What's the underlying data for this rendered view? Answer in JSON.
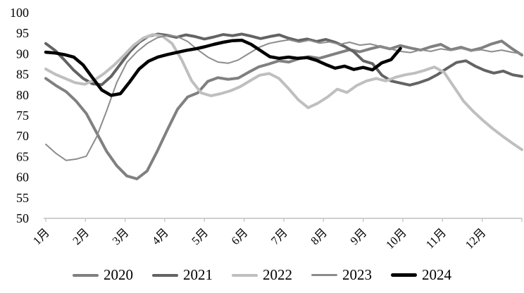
{
  "chart_data": {
    "type": "line",
    "title": "",
    "xlabel": "",
    "ylabel": "",
    "ylim": [
      50,
      100
    ],
    "ytick_step": 5,
    "ytick_labels": [
      "100",
      "95",
      "90",
      "85",
      "80",
      "75",
      "70",
      "65",
      "60",
      "55",
      "50"
    ],
    "x_month_labels": [
      "1月",
      "2月",
      "3月",
      "4月",
      "5月",
      "6月",
      "7月",
      "8月",
      "9月",
      "10月",
      "11月",
      "12月"
    ],
    "grid": false,
    "legend_position": "bottom",
    "axis_color": "#c0c0c0",
    "tick_label_color": "#000000",
    "series": [
      {
        "name": "2020",
        "color": "#808080",
        "width": 4,
        "span": 1,
        "values": [
          84,
          82.3,
          80.8,
          78.5,
          75.5,
          70.9,
          66.3,
          62.8,
          60.3,
          59.6,
          61.5,
          66.3,
          71.5,
          76.5,
          79.5,
          80.5,
          83.3,
          84.2,
          83.8,
          84.1,
          85.5,
          86.8,
          87.5,
          88.3,
          88,
          88.8,
          89.3,
          88.9,
          89.6,
          90.3,
          91,
          90.5,
          91.2,
          91.8,
          91.2,
          92,
          91.4,
          90.9,
          91.7,
          92.3,
          91,
          91.6,
          90.8,
          91.4,
          92.4,
          93.1,
          91.3,
          89.7
        ]
      },
      {
        "name": "2021",
        "color": "#636363",
        "width": 4,
        "span": 1,
        "values": [
          92.5,
          90.8,
          88.5,
          86,
          84,
          82.7,
          82.5,
          84.5,
          87.5,
          90.5,
          92.8,
          94.3,
          94.8,
          94.5,
          94,
          94.6,
          94.2,
          93.6,
          94.1,
          94.7,
          94.4,
          94.8,
          94.3,
          93.7,
          94.2,
          94.6,
          93.8,
          93.2,
          93.6,
          93,
          93.5,
          92.8,
          91.8,
          90.5,
          88.3,
          87.6,
          84.8,
          83.4,
          82.9,
          82.4,
          83,
          83.8,
          85,
          86.5,
          87.9,
          88.3,
          87,
          86,
          85.3,
          85.8,
          84.9,
          84.5
        ]
      },
      {
        "name": "2022",
        "color": "#bfbfbf",
        "width": 4,
        "span": 1,
        "values": [
          86.3,
          85,
          84,
          83,
          82.6,
          83.6,
          85.2,
          87.2,
          89.5,
          92,
          93.8,
          94.7,
          94.3,
          92.5,
          88.5,
          83.5,
          80.5,
          79.8,
          80.3,
          81,
          82,
          83.4,
          84.8,
          85.2,
          84,
          81.5,
          78.8,
          76.9,
          78,
          79.5,
          81.4,
          80.6,
          82.3,
          83.4,
          84,
          83.4,
          84.3,
          84.9,
          85.3,
          86,
          86.8,
          85.5,
          82,
          78.5,
          76,
          73.8,
          71.8,
          70,
          68.3,
          66.7
        ]
      },
      {
        "name": "2023",
        "color": "#8c8c8c",
        "width": 2,
        "span": 1,
        "values": [
          68,
          65.8,
          64.1,
          64.4,
          65.1,
          69.7,
          76.1,
          83,
          87.9,
          90.5,
          92.5,
          93.9,
          94.5,
          94.2,
          93,
          91,
          89.2,
          88,
          87.7,
          88.5,
          90,
          91.5,
          92.5,
          93,
          93.4,
          92.8,
          93.3,
          92.6,
          92.9,
          92.3,
          92.8,
          92.1,
          92.4,
          91.8,
          91.2,
          90.6,
          90.3,
          91,
          90.6,
          91.2,
          90.8,
          91.3,
          90.7,
          91,
          90.5,
          90.9,
          90.4,
          90
        ]
      },
      {
        "name": "2024",
        "color": "#000000",
        "width": 4.5,
        "span": 0.745,
        "values": [
          90.4,
          90.2,
          89.8,
          89.2,
          87.3,
          84.2,
          81.2,
          79.9,
          80.3,
          83.2,
          86.3,
          88.2,
          89.2,
          89.8,
          90.3,
          90.8,
          91.2,
          91.7,
          92.3,
          92.8,
          93.2,
          93.3,
          92.3,
          90.8,
          89.3,
          88.9,
          89.2,
          88.9,
          89.1,
          88.4,
          87.4,
          86.5,
          87,
          86.2,
          86.7,
          86.1,
          87.8,
          88.6,
          91.3
        ]
      }
    ]
  }
}
